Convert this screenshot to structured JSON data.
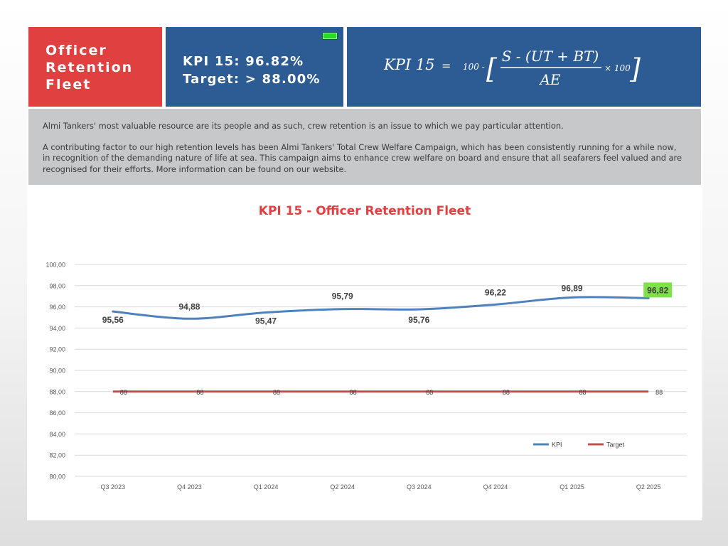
{
  "header": {
    "title_lines": [
      "Officer",
      "Retention",
      "Fleet"
    ],
    "kpi_line": "KPI 15: 96.82%",
    "target_line": "Target: > 88.00%",
    "indicator_color": "#22dd22"
  },
  "formula": {
    "lhs": "KPI  15",
    "equals": "=",
    "prefix": "100 -",
    "numerator": "S - (UT + BT)",
    "denominator": "AE",
    "multiplier": "× 100",
    "open_bracket": "[",
    "close_bracket": "]"
  },
  "info": {
    "paragraph1": "Almi Tankers' most valuable resource are its people and as such, crew retention is an issue to which we pay particular attention.",
    "paragraph2": "A contributing factor to our high retention levels has been Almi Tankers' Total Crew Welfare Campaign, which has been consistently running for a while now, in recognition of the demanding nature of life at sea. This campaign aims to enhance crew welfare on board and ensure that all seafarers feel valued and are recognised for their efforts. More information can be found on our website."
  },
  "chart_data": {
    "type": "line",
    "title": "KPI 15 - Officer Retention Fleet",
    "categories": [
      "Q3 2023",
      "Q4 2023",
      "Q1 2024",
      "Q2 2024",
      "Q3 2024",
      "Q4 2024",
      "Q1 2025",
      "Q2 2025"
    ],
    "series": [
      {
        "name": "KPI",
        "color": "#4f81bd",
        "values": [
          95.56,
          94.88,
          95.47,
          95.79,
          95.76,
          96.22,
          96.89,
          96.82
        ],
        "labels": [
          "95,56",
          "94,88",
          "95,47",
          "95,79",
          "95,76",
          "96,22",
          "96,89",
          "96,82"
        ],
        "highlight_last_color": "#7fe04a"
      },
      {
        "name": "Target",
        "color": "#c0504d",
        "values": [
          88,
          88,
          88,
          88,
          88,
          88,
          88,
          88
        ],
        "labels": [
          "88",
          "88",
          "88",
          "88",
          "88",
          "88",
          "88",
          "88"
        ]
      }
    ],
    "ylim": [
      80,
      100
    ],
    "yticks": [
      "80,00",
      "82,00",
      "84,00",
      "86,00",
      "88,00",
      "90,00",
      "92,00",
      "94,00",
      "96,00",
      "98,00",
      "100,00"
    ],
    "grid": true,
    "legend_position": "bottom-right"
  }
}
